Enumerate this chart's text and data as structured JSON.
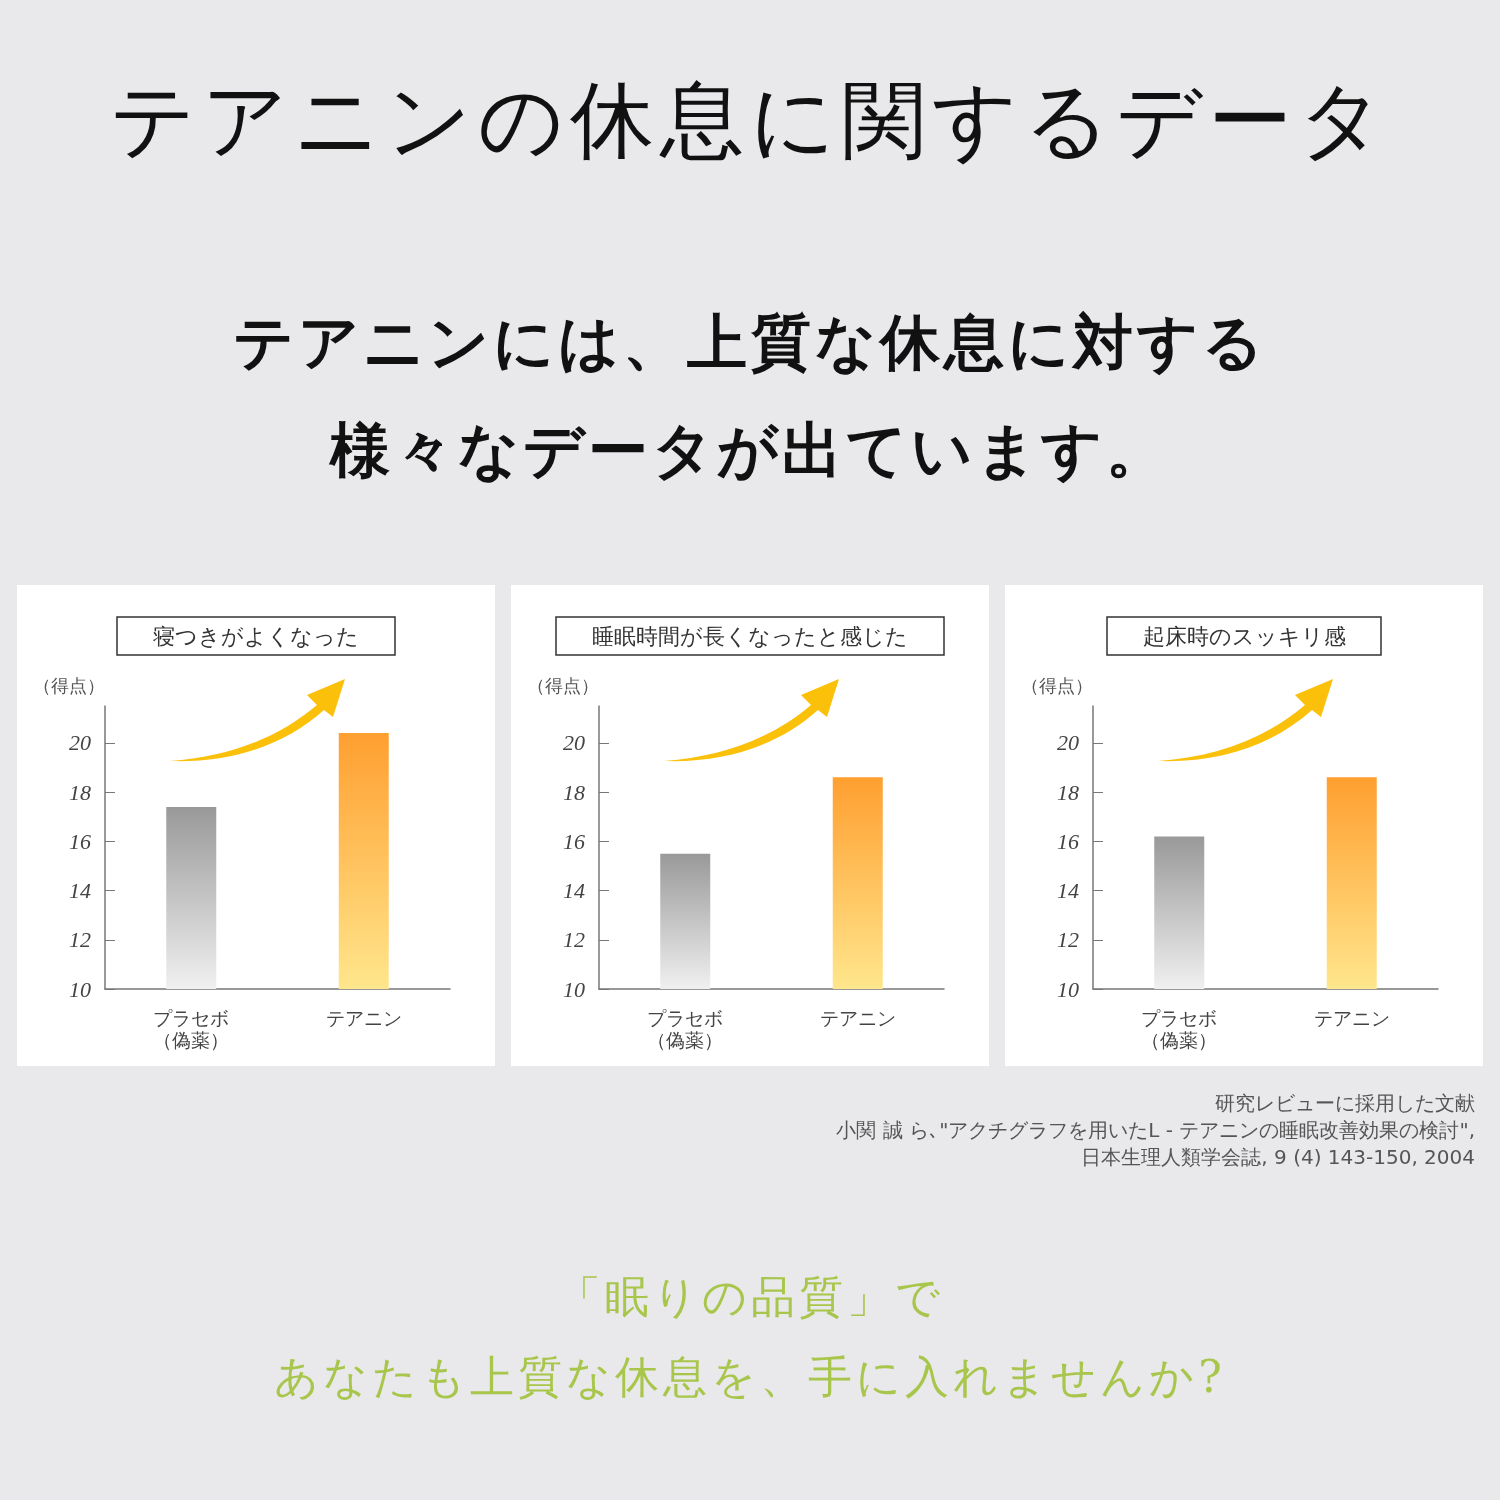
{
  "chart_data": [
    {
      "type": "other",
      "title": "テアニンの休息に関するデータ",
      "subtitle": "テアニンには、上質な休息に対する様々なデータが出ています。"
    },
    {
      "type": "bar",
      "title": "寝つきがよくなった",
      "ylabel": "（得点）",
      "categories": [
        "プラセボ（偽薬）",
        "テアニン"
      ],
      "values": [
        17.4,
        20.4
      ],
      "colors": [
        "#999999",
        "#ff9f30"
      ],
      "ylim": [
        10,
        21.5
      ],
      "yticks": [
        10,
        12,
        14,
        16,
        18,
        20
      ]
    },
    {
      "type": "bar",
      "title": "睡眠時間が長くなったと感じた",
      "ylabel": "（得点）",
      "categories": [
        "プラセボ（偽薬）",
        "テアニン"
      ],
      "values": [
        15.5,
        18.6
      ],
      "colors": [
        "#999999",
        "#ff9f30"
      ],
      "ylim": [
        10,
        21.5
      ],
      "yticks": [
        10,
        12,
        14,
        16,
        18,
        20
      ]
    },
    {
      "type": "bar",
      "title": "起床時のスッキリ感",
      "ylabel": "（得点）",
      "categories": [
        "プラセボ（偽薬）",
        "テアニン"
      ],
      "values": [
        16.2,
        18.6
      ],
      "colors": [
        "#999999",
        "#ff9f30"
      ],
      "ylim": [
        10,
        21.5
      ],
      "yticks": [
        10,
        12,
        14,
        16,
        18,
        20
      ]
    },
    {
      "type": "other",
      "annotations": [
        "研究レビューに採用した文献",
        "小関 誠 ら､\"アクチグラフを用いたL - テアニンの睡眠改善効果の検討\",",
        "日本生理人類学会誌, 9 (4) 143-150, 2004"
      ]
    },
    {
      "type": "other",
      "title": "「眠りの品質」で",
      "subtitle": "あなたも上質な休息を、手に入れませんか?"
    }
  ]
}
